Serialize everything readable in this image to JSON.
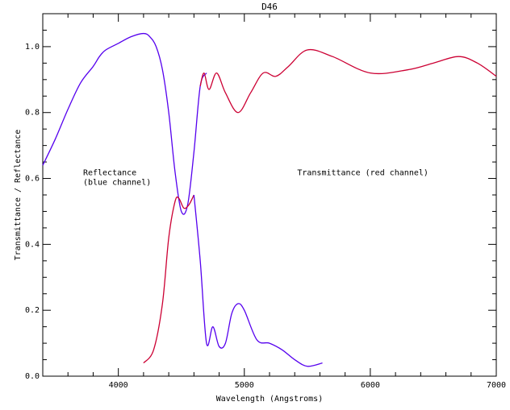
{
  "chart_data": {
    "type": "line",
    "title": "D46",
    "xlabel": "Wavelength (Angstroms)",
    "ylabel": "Transmittance / Reflectance",
    "xlim": [
      3400,
      7000
    ],
    "ylim": [
      0,
      1.1
    ],
    "xticks": [
      4000,
      5000,
      6000,
      7000
    ],
    "yticks": [
      0.0,
      0.2,
      0.4,
      0.6,
      0.8,
      1.0
    ],
    "xtick_labels": [
      "4000",
      "5000",
      "6000",
      "7000"
    ],
    "ytick_labels": [
      "0.0",
      "0.2",
      "0.4",
      "0.6",
      "0.8",
      "1.0"
    ],
    "grid": false,
    "annotations": [
      {
        "lines": [
          "Reflectance",
          "(blue channel)"
        ],
        "x": 3720,
        "y": 0.61
      },
      {
        "lines": [
          "Transmittance (red channel)"
        ],
        "x": 5420,
        "y": 0.61
      }
    ],
    "series": [
      {
        "color": "#5500ee",
        "x": [
          3400,
          3500,
          3600,
          3700,
          3800,
          3850,
          3900,
          4000,
          4100,
          4200,
          4250,
          4300,
          4350,
          4400,
          4450,
          4500,
          4550,
          4600,
          4650,
          4700
        ],
        "y": [
          0.64,
          0.72,
          0.81,
          0.89,
          0.94,
          0.97,
          0.99,
          1.01,
          1.03,
          1.04,
          1.03,
          1.0,
          0.93,
          0.8,
          0.62,
          0.5,
          0.52,
          0.68,
          0.88,
          0.92
        ]
      },
      {
        "color": "#cc0033",
        "x": [
          4650,
          4680,
          4720,
          4780,
          4850,
          4950,
          5050,
          5150,
          5250,
          5350,
          5500,
          5700,
          6000,
          6300,
          6500,
          6700,
          6850,
          7000
        ],
        "y": [
          0.88,
          0.92,
          0.87,
          0.92,
          0.86,
          0.8,
          0.86,
          0.92,
          0.91,
          0.94,
          0.99,
          0.97,
          0.92,
          0.93,
          0.95,
          0.97,
          0.95,
          0.91
        ]
      },
      {
        "color": "#cc0033",
        "x": [
          4200,
          4280,
          4350,
          4400,
          4450,
          4480,
          4520,
          4560,
          4600
        ],
        "y": [
          0.04,
          0.08,
          0.22,
          0.42,
          0.53,
          0.54,
          0.51,
          0.52,
          0.55
        ]
      },
      {
        "color": "#5500ee",
        "x": [
          4600,
          4650,
          4700,
          4750,
          4800,
          4850,
          4900,
          4950,
          5000,
          5100,
          5200,
          5300,
          5400,
          5500,
          5620
        ],
        "y": [
          0.55,
          0.35,
          0.1,
          0.15,
          0.09,
          0.1,
          0.19,
          0.22,
          0.2,
          0.11,
          0.1,
          0.08,
          0.05,
          0.03,
          0.04
        ]
      }
    ]
  }
}
